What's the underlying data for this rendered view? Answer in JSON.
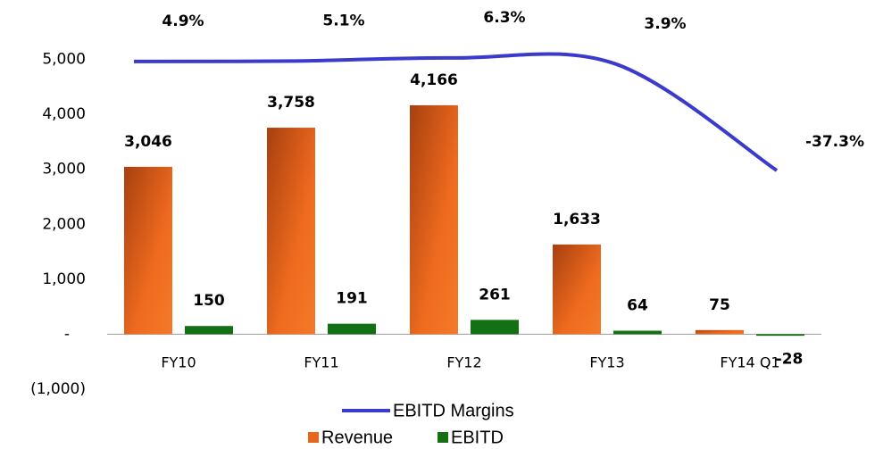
{
  "chart_data": {
    "type": "bar",
    "categories": [
      "FY10",
      "FY11",
      "FY12",
      "FY13",
      "FY14 Q1"
    ],
    "ylim": [
      -1000,
      6000
    ],
    "yticks": [
      {
        "value": -1000,
        "label": "(1,000)"
      },
      {
        "value": 0,
        "label": "-"
      },
      {
        "value": 1000,
        "label": "1,000"
      },
      {
        "value": 2000,
        "label": "2,000"
      },
      {
        "value": 3000,
        "label": "3,000"
      },
      {
        "value": 4000,
        "label": "4,000"
      },
      {
        "value": 5000,
        "label": "5,000"
      }
    ],
    "y2lim": [
      -122,
      27
    ],
    "series": [
      {
        "name": "Revenue",
        "color": "#e8661c",
        "values": [
          3046,
          3758,
          4166,
          1633,
          75
        ],
        "value_labels": [
          "3,046",
          "3,758",
          "4,166",
          "1,633",
          "75"
        ]
      },
      {
        "name": "EBITD",
        "color": "#137013",
        "values": [
          150,
          191,
          261,
          64,
          -28
        ]
      },
      {
        "name": "EBITD Margins",
        "type": "line",
        "axis": "y2",
        "color": "#3a3acc",
        "values": [
          4.9,
          5.1,
          6.3,
          3.9,
          -37.3
        ],
        "value_labels": [
          "4.9%",
          "5.1%",
          "6.3%",
          "3.9%",
          "-37.3%"
        ]
      }
    ]
  }
}
